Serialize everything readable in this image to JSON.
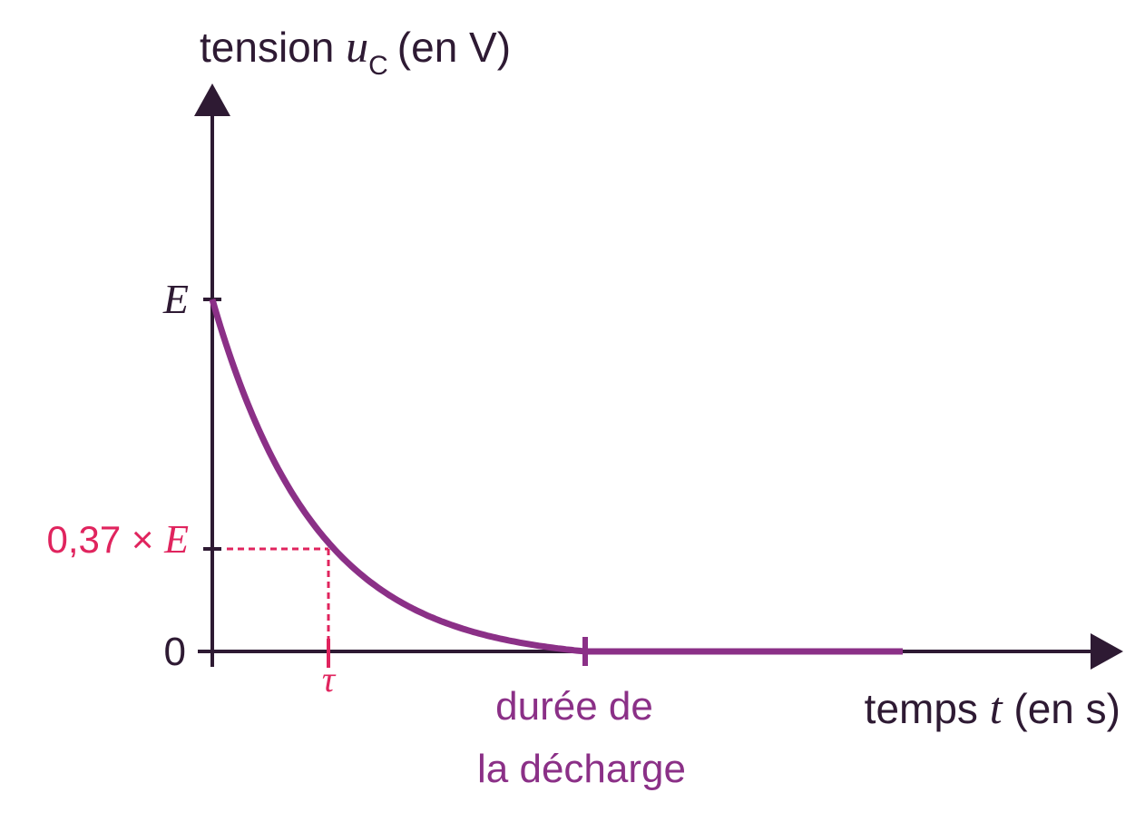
{
  "y_axis": {
    "title_word": "tension",
    "title_symbol": "u",
    "title_subscript": "C",
    "title_unit": "(en V)",
    "tick_top": "E",
    "tick_mid": {
      "factor": "0,37 ×",
      "symbol": "E"
    },
    "tick_zero": "0"
  },
  "x_axis": {
    "title_word": "temps",
    "title_symbol": "t",
    "title_unit": "(en s)",
    "tick_tau": "τ",
    "annotation": [
      "durée de",
      "la décharge"
    ]
  }
}
